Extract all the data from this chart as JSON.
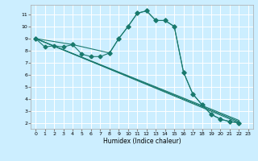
{
  "title": "",
  "xlabel": "Humidex (Indice chaleur)",
  "bg_color": "#cceeff",
  "grid_color": "#ffffff",
  "line_color": "#1a7a6e",
  "xlim": [
    -0.5,
    23.5
  ],
  "ylim": [
    1.5,
    11.8
  ],
  "yticks": [
    2,
    3,
    4,
    5,
    6,
    7,
    8,
    9,
    10,
    11
  ],
  "xticks": [
    0,
    1,
    2,
    3,
    4,
    5,
    6,
    7,
    8,
    9,
    10,
    11,
    12,
    13,
    14,
    15,
    16,
    17,
    18,
    19,
    20,
    21,
    22,
    23
  ],
  "series1_x": [
    0,
    1,
    2,
    3,
    4,
    5,
    6,
    7,
    8,
    9,
    10,
    11,
    12,
    13,
    14,
    15,
    16,
    17,
    18,
    19,
    20,
    21,
    22
  ],
  "series1_y": [
    9.0,
    8.3,
    8.4,
    8.3,
    8.5,
    7.7,
    7.5,
    7.5,
    7.8,
    9.0,
    10.0,
    11.1,
    11.3,
    10.5,
    10.5,
    10.0,
    6.2,
    4.4,
    3.5,
    2.7,
    2.3,
    2.1,
    2.0
  ],
  "series2_x": [
    0,
    4,
    8,
    9,
    10,
    11,
    12,
    13,
    14,
    15,
    16,
    17,
    18,
    19,
    20,
    21,
    22
  ],
  "series2_y": [
    9.0,
    8.5,
    7.8,
    9.0,
    10.0,
    11.1,
    11.3,
    10.5,
    10.5,
    10.0,
    6.2,
    4.4,
    3.5,
    2.7,
    2.3,
    2.1,
    2.0
  ],
  "linear_lines": [
    {
      "x": [
        0,
        22
      ],
      "y": [
        9.0,
        2.0
      ]
    },
    {
      "x": [
        0,
        22
      ],
      "y": [
        9.0,
        2.1
      ]
    },
    {
      "x": [
        0,
        22
      ],
      "y": [
        9.0,
        2.2
      ]
    }
  ]
}
